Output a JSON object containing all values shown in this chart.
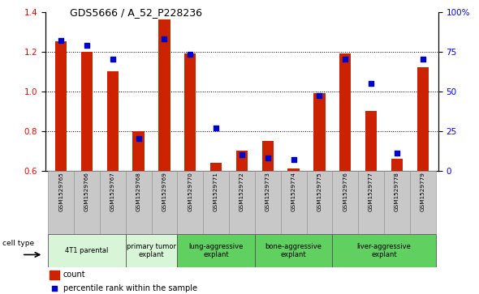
{
  "title": "GDS5666 / A_52_P228236",
  "samples": [
    "GSM1529765",
    "GSM1529766",
    "GSM1529767",
    "GSM1529768",
    "GSM1529769",
    "GSM1529770",
    "GSM1529771",
    "GSM1529772",
    "GSM1529773",
    "GSM1529774",
    "GSM1529775",
    "GSM1529776",
    "GSM1529777",
    "GSM1529778",
    "GSM1529779"
  ],
  "count_values": [
    1.25,
    1.2,
    1.1,
    0.8,
    1.36,
    1.19,
    0.64,
    0.7,
    0.75,
    0.61,
    0.99,
    1.19,
    0.9,
    0.66,
    1.12
  ],
  "percentile_values": [
    82,
    79,
    70,
    20,
    83,
    73,
    27,
    10,
    8,
    7,
    47,
    70,
    55,
    11,
    70
  ],
  "cell_types": [
    {
      "label": "4T1 parental",
      "start": 0,
      "end": 3,
      "color": "#d8f5d8"
    },
    {
      "label": "primary tumor\nexplant",
      "start": 3,
      "end": 5,
      "color": "#d8f5d8"
    },
    {
      "label": "lung-aggressive\nexplant",
      "start": 5,
      "end": 8,
      "color": "#60d060"
    },
    {
      "label": "bone-aggressive\nexplant",
      "start": 8,
      "end": 11,
      "color": "#60d060"
    },
    {
      "label": "liver-aggressive\nexplant",
      "start": 11,
      "end": 15,
      "color": "#60d060"
    }
  ],
  "ylim": [
    0.6,
    1.4
  ],
  "yticks": [
    0.6,
    0.8,
    1.0,
    1.2,
    1.4
  ],
  "right_ylim": [
    0,
    100
  ],
  "right_yticks": [
    0,
    25,
    50,
    75,
    100
  ],
  "right_yticklabels": [
    "0",
    "25",
    "50",
    "75",
    "100%"
  ],
  "bar_color": "#cc2200",
  "dot_color": "#0000cc",
  "bar_width": 0.45,
  "dot_size": 22,
  "legend_count_label": "count",
  "legend_percentile_label": "percentile rank within the sample",
  "cell_type_label": "cell type",
  "background_label_row": "#c8c8c8",
  "grid_lines": [
    0.8,
    1.0,
    1.2
  ]
}
